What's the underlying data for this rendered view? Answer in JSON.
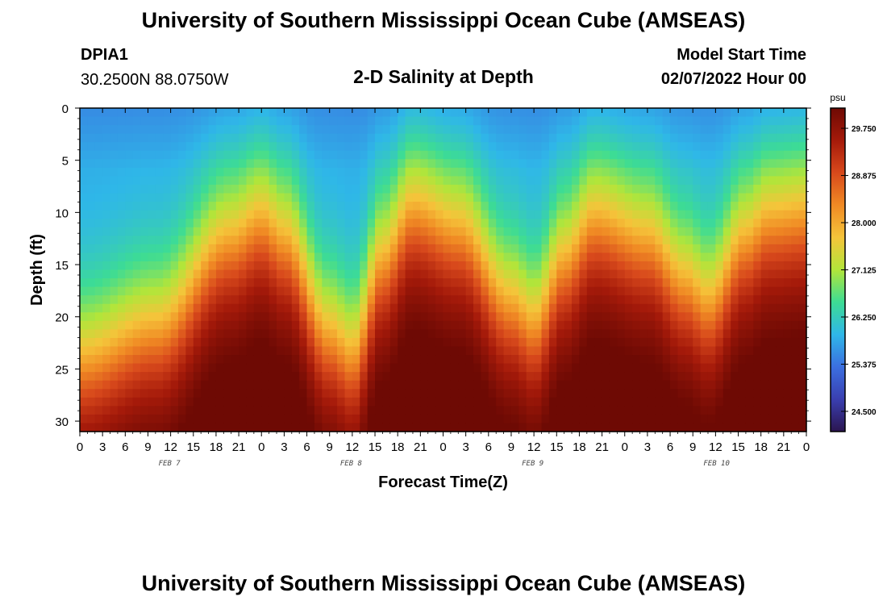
{
  "header": {
    "title": "University of Southern Mississippi Ocean Cube (AMSEAS)",
    "station": "DPIA1",
    "coords": "30.2500N  88.0750W",
    "plot_title": "2-D Salinity at Depth",
    "model_start_label": "Model Start Time",
    "model_start_value": "02/07/2022 Hour 00"
  },
  "footer": {
    "title": "University of Southern Mississippi Ocean Cube (AMSEAS)"
  },
  "chart_data": {
    "type": "heatmap",
    "title": "2-D Salinity at Depth",
    "xlabel": "Forecast Time(Z)",
    "ylabel": "Depth (ft)",
    "x_hours_range": [
      0,
      96
    ],
    "x_tick_labels": [
      "0",
      "3",
      "6",
      "9",
      "12",
      "15",
      "18",
      "21",
      "0",
      "3",
      "6",
      "9",
      "12",
      "15",
      "18",
      "21",
      "0",
      "3",
      "6",
      "9",
      "12",
      "15",
      "18",
      "21",
      "0",
      "3",
      "6",
      "9",
      "12",
      "15",
      "18",
      "21",
      "0"
    ],
    "day_labels": [
      {
        "label": "FEB 7",
        "hour": 12
      },
      {
        "label": "FEB 8",
        "hour": 36
      },
      {
        "label": "FEB 9",
        "hour": 60
      },
      {
        "label": "FEB 10",
        "hour": 84
      }
    ],
    "ylim": [
      0,
      31
    ],
    "y_tick_labels": [
      "0",
      "5",
      "10",
      "15",
      "20",
      "25",
      "30"
    ],
    "y_tick_values": [
      0,
      5,
      10,
      15,
      20,
      25,
      30
    ],
    "colorbar": {
      "unit": "psu",
      "range": [
        24.125,
        30.125
      ],
      "tick_labels": [
        "29.750",
        "28.875",
        "28.000",
        "27.125",
        "26.250",
        "25.375",
        "24.500"
      ],
      "tick_values": [
        29.75,
        28.875,
        28.0,
        27.125,
        26.25,
        25.375,
        24.5
      ],
      "colors": [
        "#2b1550",
        "#3a3fb0",
        "#3b6fe0",
        "#2fb7e8",
        "#3ddc94",
        "#b2e53a",
        "#f5c43a",
        "#f08a24",
        "#d8491c",
        "#a51a0a",
        "#6e0a04"
      ]
    },
    "halocline_depth_ft": [
      {
        "hour": 0,
        "depth": 23.5
      },
      {
        "hour": 10,
        "depth": 20.5
      },
      {
        "hour": 20,
        "depth": 12
      },
      {
        "hour": 24,
        "depth": 10
      },
      {
        "hour": 27,
        "depth": 12
      },
      {
        "hour": 33,
        "depth": 21
      },
      {
        "hour": 36,
        "depth": 23
      },
      {
        "hour": 40,
        "depth": 14
      },
      {
        "hour": 44,
        "depth": 9
      },
      {
        "hour": 50,
        "depth": 11
      },
      {
        "hour": 57,
        "depth": 18
      },
      {
        "hour": 60,
        "depth": 20
      },
      {
        "hour": 64,
        "depth": 14
      },
      {
        "hour": 68,
        "depth": 10
      },
      {
        "hour": 75,
        "depth": 12
      },
      {
        "hour": 80,
        "depth": 16
      },
      {
        "hour": 83,
        "depth": 18
      },
      {
        "hour": 88,
        "depth": 12
      },
      {
        "hour": 91,
        "depth": 10
      },
      {
        "hour": 96,
        "depth": 9.5
      }
    ],
    "surface_salinity_psu": 25.8,
    "bottom_salinity_psu": 29.9
  }
}
